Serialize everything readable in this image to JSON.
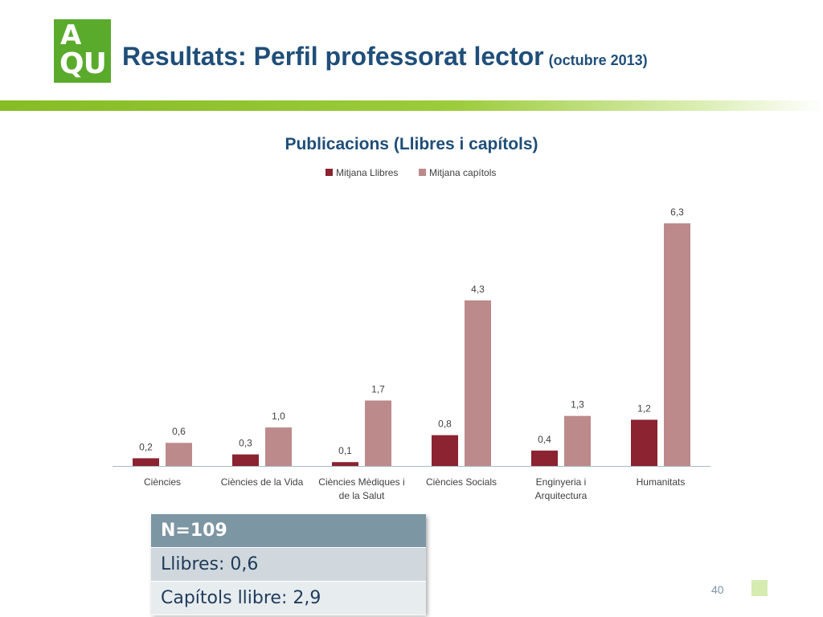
{
  "header": {
    "logo_top": "A",
    "logo_bottom": "QU",
    "title": "Resultats: Perfil professorat lector",
    "title_sub": "(octubre 2013)"
  },
  "chart_data": {
    "type": "bar",
    "title": "Publicacions (Llibres i capítols)",
    "categories": [
      [
        "Ciències"
      ],
      [
        "Ciències de la Vida"
      ],
      [
        "Ciències Mèdiques i",
        "de la Salut"
      ],
      [
        "Ciències Socials"
      ],
      [
        "Enginyeria i",
        "Arquitectura"
      ],
      [
        "Humanitats"
      ]
    ],
    "series": [
      {
        "name": "Mitjana Llibres",
        "values": [
          0.2,
          0.3,
          0.1,
          0.8,
          0.4,
          1.2
        ],
        "labels": [
          "0,2",
          "0,3",
          "0,1",
          "0,8",
          "0,4",
          "1,2"
        ],
        "color": "#8b2330"
      },
      {
        "name": "Mitjana capítols",
        "values": [
          0.6,
          1.0,
          1.7,
          4.3,
          1.3,
          6.3
        ],
        "labels": [
          "0,6",
          "1,0",
          "1,7",
          "4,3",
          "1,3",
          "6,3"
        ],
        "color": "#bd8a8b"
      }
    ],
    "legend": "top",
    "grid": false,
    "ylim": [
      0,
      6.3
    ]
  },
  "info_box": {
    "header": "N=109",
    "row1": "Llibres: 0,6",
    "row2": "Capítols llibre: 2,9"
  },
  "page_number": "40",
  "colors": {
    "title": "#1f4e79",
    "logo": "#5aab2c",
    "axis": "#a6b8c8"
  }
}
